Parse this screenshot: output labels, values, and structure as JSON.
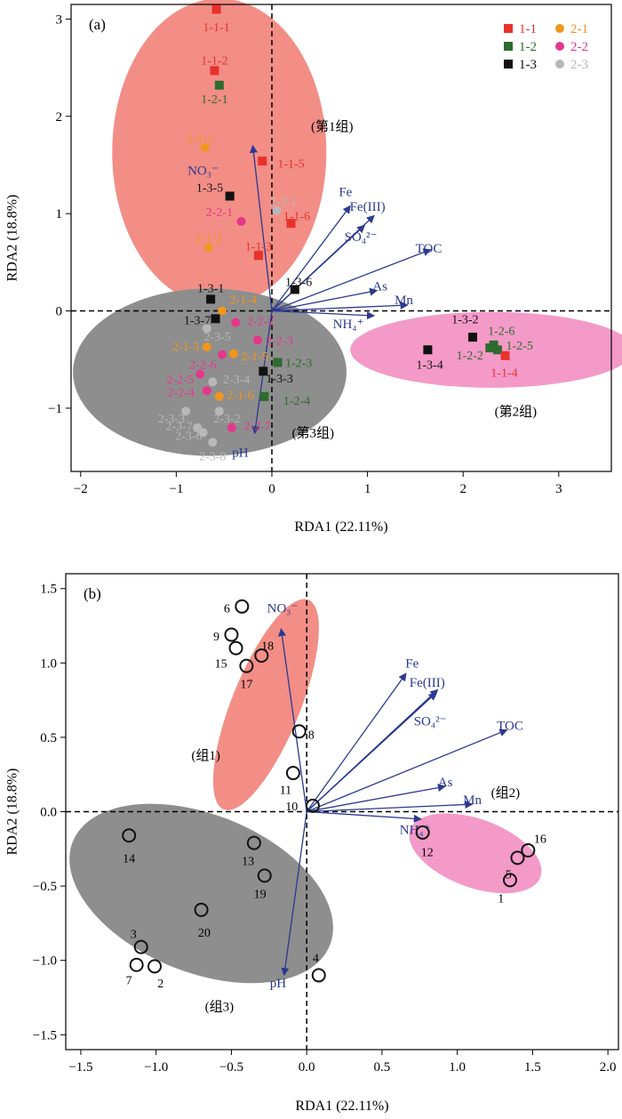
{
  "colors": {
    "1-1": "#e8312d",
    "1-2": "#2e6b2e",
    "1-3": "#111111",
    "2-1": "#f0961e",
    "2-2": "#e5378a",
    "2-3": "#b8b8b8",
    "arrow": "#2b3990",
    "ellipse_red": "#f28e86",
    "ellipse_pink": "#f49ac8",
    "ellipse_gray": "#8e8e8e"
  },
  "chart_data": [
    {
      "type": "scatter",
      "panel_label": "(a)",
      "xlabel": "RDA1 (22.11%)",
      "ylabel": "RDA2 (18.8%)",
      "xlim": [
        -2.1,
        3.55
      ],
      "ylim": [
        -1.65,
        3.15
      ],
      "xticks": [
        -2,
        -1,
        0,
        1,
        2,
        3
      ],
      "yticks": [
        -1,
        0,
        1,
        2,
        3
      ],
      "xtick_labels": [
        "−2",
        "−1",
        "0",
        "1",
        "2",
        "3"
      ],
      "ytick_labels": [
        "−1",
        "0",
        "1",
        "2",
        "3"
      ],
      "legend": {
        "position": "top-right",
        "entries": [
          {
            "label": "1-1",
            "group": "1-1",
            "marker": "square"
          },
          {
            "label": "2-1",
            "group": "2-1",
            "marker": "circle"
          },
          {
            "label": "1-2",
            "group": "1-2",
            "marker": "square"
          },
          {
            "label": "2-2",
            "group": "2-2",
            "marker": "circle"
          },
          {
            "label": "1-3",
            "group": "1-3",
            "marker": "square"
          },
          {
            "label": "2-3",
            "group": "2-3",
            "marker": "circle"
          }
        ]
      },
      "ellipses": [
        {
          "cx": -0.55,
          "cy": 1.63,
          "rx": 1.12,
          "ry": 1.58,
          "color": "ellipse_red",
          "label": "(第1组)",
          "label_x": 0.63,
          "label_y": 1.85
        },
        {
          "cx": 2.3,
          "cy": -0.4,
          "rx": 1.48,
          "ry": 0.39,
          "color": "ellipse_pink",
          "label": "(第2组)",
          "label_x": 2.55,
          "label_y": -1.08
        },
        {
          "cx": -0.65,
          "cy": -0.63,
          "rx": 1.43,
          "ry": 0.86,
          "color": "ellipse_gray",
          "label": "(第3组)",
          "label_x": 0.43,
          "label_y": -1.3
        }
      ],
      "arrows": [
        {
          "label": "NO₃⁻",
          "x": -0.2,
          "y": 1.7,
          "label_x": -0.72,
          "label_y": 1.4
        },
        {
          "label": "Fe",
          "x": 0.82,
          "y": 1.08,
          "label_x": 0.77,
          "label_y": 1.18
        },
        {
          "label": "Fe(III)",
          "x": 1.07,
          "y": 0.98,
          "label_x": 1.0,
          "label_y": 1.03
        },
        {
          "label": "SO₄²⁻",
          "x": 0.97,
          "y": 0.88,
          "label_x": 0.93,
          "label_y": 0.72
        },
        {
          "label": "TOC",
          "x": 1.66,
          "y": 0.63,
          "label_x": 1.64,
          "label_y": 0.6
        },
        {
          "label": "As",
          "x": 1.1,
          "y": 0.21,
          "label_x": 1.13,
          "label_y": 0.21
        },
        {
          "label": "Mn",
          "x": 1.42,
          "y": 0.06,
          "label_x": 1.38,
          "label_y": 0.07
        },
        {
          "label": "NH₄⁺",
          "x": 1.07,
          "y": -0.05,
          "label_x": 0.8,
          "label_y": -0.18
        },
        {
          "label": "pH",
          "x": -0.18,
          "y": -1.26,
          "label_x": -0.33,
          "label_y": -1.5
        }
      ],
      "points": [
        {
          "label": "1-1-1",
          "group": "1-1",
          "x": -0.58,
          "y": 3.1,
          "lx": -0.58,
          "ly": 2.92
        },
        {
          "label": "1-1-2",
          "group": "1-1",
          "x": -0.6,
          "y": 2.47,
          "lx": -0.6,
          "ly": 2.58
        },
        {
          "label": "1-2-1",
          "group": "1-2",
          "x": -0.55,
          "y": 2.32,
          "lx": -0.6,
          "ly": 2.18
        },
        {
          "label": "2-1-1",
          "group": "2-1",
          "x": -0.7,
          "y": 1.68,
          "lx": -0.75,
          "ly": 1.78
        },
        {
          "label": "1-1-5",
          "group": "1-1",
          "x": -0.1,
          "y": 1.54,
          "lx": 0.2,
          "ly": 1.52
        },
        {
          "label": "1-3-5",
          "group": "1-3",
          "x": -0.44,
          "y": 1.18,
          "lx": -0.65,
          "ly": 1.27
        },
        {
          "label": "2-3-1",
          "group": "2-3",
          "x": 0.05,
          "y": 1.03,
          "lx": 0.12,
          "ly": 1.13
        },
        {
          "label": "2-2-1",
          "group": "2-2",
          "x": -0.32,
          "y": 0.92,
          "lx": -0.55,
          "ly": 1.02
        },
        {
          "label": "1-1-6",
          "group": "1-1",
          "x": 0.2,
          "y": 0.9,
          "lx": 0.26,
          "ly": 0.98
        },
        {
          "label": "2-1-2",
          "group": "2-1",
          "x": -0.66,
          "y": 0.65,
          "lx": -0.66,
          "ly": 0.75
        },
        {
          "label": "1-1-3",
          "group": "1-1",
          "x": -0.14,
          "y": 0.57,
          "lx": -0.14,
          "ly": 0.67
        },
        {
          "label": "1-3-6",
          "group": "1-3",
          "x": 0.24,
          "y": 0.22,
          "lx": 0.28,
          "ly": 0.3
        },
        {
          "label": "1-3-1",
          "group": "1-3",
          "x": -0.64,
          "y": 0.12,
          "lx": -0.64,
          "ly": 0.24
        },
        {
          "label": "2-1-4",
          "group": "2-1",
          "x": -0.52,
          "y": 0.0,
          "lx": -0.3,
          "ly": 0.12
        },
        {
          "label": "1-3-7",
          "group": "1-3",
          "x": -0.59,
          "y": -0.08,
          "lx": -0.78,
          "ly": -0.09
        },
        {
          "label": "2-2-2",
          "group": "2-2",
          "x": -0.38,
          "y": -0.12,
          "lx": -0.12,
          "ly": -0.1
        },
        {
          "label": "2-3-5",
          "group": "2-3",
          "x": -0.68,
          "y": -0.18,
          "lx": -0.57,
          "ly": -0.26
        },
        {
          "label": "2-2-3",
          "group": "2-2",
          "x": -0.15,
          "y": -0.3,
          "lx": 0.08,
          "ly": -0.3
        },
        {
          "label": "2-1-3",
          "group": "2-1",
          "x": -0.68,
          "y": -0.37,
          "lx": -0.9,
          "ly": -0.36
        },
        {
          "label": "2-1-5",
          "group": "2-1",
          "x": -0.4,
          "y": -0.44,
          "lx": -0.18,
          "ly": -0.46
        },
        {
          "label": "2-2-6",
          "group": "2-2",
          "x": -0.52,
          "y": -0.45,
          "lx": -0.72,
          "ly": -0.55
        },
        {
          "label": "1-2-3",
          "group": "1-2",
          "x": 0.06,
          "y": -0.53,
          "lx": 0.28,
          "ly": -0.53
        },
        {
          "label": "2-2-5",
          "group": "2-2",
          "x": -0.75,
          "y": -0.65,
          "lx": -0.96,
          "ly": -0.7
        },
        {
          "label": "1-3-3",
          "group": "1-3",
          "x": -0.09,
          "y": -0.62,
          "lx": 0.08,
          "ly": -0.69
        },
        {
          "label": "2-3-4",
          "group": "2-3",
          "x": -0.62,
          "y": -0.73,
          "lx": -0.37,
          "ly": -0.7
        },
        {
          "label": "2-2-4",
          "group": "2-2",
          "x": -0.68,
          "y": -0.82,
          "lx": -0.95,
          "ly": -0.83
        },
        {
          "label": "2-1-6",
          "group": "2-1",
          "x": -0.55,
          "y": -0.88,
          "lx": -0.33,
          "ly": -0.86
        },
        {
          "label": "1-2-4",
          "group": "1-2",
          "x": -0.08,
          "y": -0.88,
          "lx": 0.26,
          "ly": -0.92
        },
        {
          "label": "2-3-2",
          "group": "2-3",
          "x": -0.55,
          "y": -1.03,
          "lx": -0.47,
          "ly": -1.1
        },
        {
          "label": "2-3-3",
          "group": "2-3",
          "x": -0.9,
          "y": -1.03,
          "lx": -1.05,
          "ly": -1.1
        },
        {
          "label": "2-2-7",
          "group": "2-2",
          "x": -0.42,
          "y": -1.2,
          "lx": -0.15,
          "ly": -1.18
        },
        {
          "label": "2-3-6",
          "group": "2-3",
          "x": -0.78,
          "y": -1.2,
          "lx": -0.87,
          "ly": -1.28
        },
        {
          "label": "2-3-7",
          "group": "2-3",
          "x": -0.72,
          "y": -1.25,
          "lx": -0.97,
          "ly": -1.18
        },
        {
          "label": "2-3-8",
          "group": "2-3",
          "x": -0.62,
          "y": -1.35,
          "lx": -0.62,
          "ly": -1.49
        },
        {
          "label": "1-3-2",
          "group": "1-3",
          "x": 2.1,
          "y": -0.27,
          "lx": 2.02,
          "ly": -0.08
        },
        {
          "label": "1-3-4",
          "group": "1-3",
          "x": 1.63,
          "y": -0.4,
          "lx": 1.65,
          "ly": -0.55
        },
        {
          "label": "1-2-2",
          "group": "1-2",
          "x": 2.28,
          "y": -0.38,
          "lx": 2.07,
          "ly": -0.45
        },
        {
          "label": "1-2-6",
          "group": "1-2",
          "x": 2.32,
          "y": -0.35,
          "lx": 2.4,
          "ly": -0.2
        },
        {
          "label": "1-2-5",
          "group": "1-2",
          "x": 2.36,
          "y": -0.4,
          "lx": 2.59,
          "ly": -0.35
        },
        {
          "label": "1-1-4",
          "group": "1-1",
          "x": 2.44,
          "y": -0.46,
          "lx": 2.43,
          "ly": -0.63
        }
      ]
    },
    {
      "type": "scatter",
      "panel_label": "(b)",
      "xlabel": "RDA1 (22.11%)",
      "ylabel": "RDA2 (18.8%)",
      "xlim": [
        -1.6,
        2.07
      ],
      "ylim": [
        -1.6,
        1.6
      ],
      "xticks": [
        -1.5,
        -1.0,
        -0.5,
        0.0,
        0.5,
        1.0,
        1.5,
        2.0
      ],
      "yticks": [
        -1.5,
        -1.0,
        -0.5,
        0.0,
        0.5,
        1.0,
        1.5
      ],
      "xtick_labels": [
        "−1.5",
        "−1.0",
        "−0.5",
        "0.0",
        "0.5",
        "1.0",
        "1.5",
        "2.0"
      ],
      "ytick_labels": [
        "−1.5",
        "−1.0",
        "−0.5",
        "0.0",
        "0.5",
        "1.0",
        "1.5"
      ],
      "ellipses": [
        {
          "cx": -0.27,
          "cy": 0.72,
          "rx": 0.75,
          "ry": 0.23,
          "rotate": -68,
          "color": "ellipse_red",
          "label": "(组1)",
          "label_x": -0.67,
          "label_y": 0.35
        },
        {
          "cx": 1.12,
          "cy": -0.28,
          "rx": 0.46,
          "ry": 0.23,
          "rotate": 20,
          "color": "ellipse_pink",
          "label": "(组2)",
          "label_x": 1.32,
          "label_y": 0.1
        },
        {
          "cx": -0.7,
          "cy": -0.55,
          "rx": 0.92,
          "ry": 0.53,
          "rotate": 22,
          "color": "ellipse_gray",
          "label": "(组3)",
          "label_x": -0.58,
          "label_y": -1.34
        }
      ],
      "arrows": [
        {
          "label": "NO₃⁻",
          "x": -0.17,
          "y": 1.23,
          "label_x": -0.16,
          "label_y": 1.34
        },
        {
          "label": "Fe",
          "x": 0.66,
          "y": 0.93,
          "label_x": 0.7,
          "label_y": 0.97
        },
        {
          "label": "Fe(III)",
          "x": 0.87,
          "y": 0.82,
          "label_x": 0.8,
          "label_y": 0.84
        },
        {
          "label": "SO₄²⁻",
          "x": 0.86,
          "y": 0.8,
          "label_x": 0.82,
          "label_y": 0.58
        },
        {
          "label": "TOC",
          "x": 1.33,
          "y": 0.55,
          "label_x": 1.35,
          "label_y": 0.55
        },
        {
          "label": "As",
          "x": 0.92,
          "y": 0.17,
          "label_x": 0.92,
          "label_y": 0.17
        },
        {
          "label": "Mn",
          "x": 1.1,
          "y": 0.05,
          "label_x": 1.1,
          "label_y": 0.05
        },
        {
          "label": "NH₄⁺",
          "x": 0.76,
          "y": -0.05,
          "label_x": 0.72,
          "label_y": -0.15
        },
        {
          "label": "pH",
          "x": -0.15,
          "y": -1.1,
          "label_x": -0.19,
          "label_y": -1.18
        }
      ],
      "points": [
        {
          "label": "6",
          "x": -0.43,
          "y": 1.38,
          "lx": -0.53,
          "ly": 1.37
        },
        {
          "label": "9",
          "x": -0.5,
          "y": 1.19,
          "lx": -0.6,
          "ly": 1.18
        },
        {
          "label": "18",
          "x": -0.3,
          "y": 1.05,
          "lx": -0.26,
          "ly": 1.12
        },
        {
          "label": "15",
          "x": -0.47,
          "y": 1.1,
          "lx": -0.57,
          "ly": 1.0
        },
        {
          "label": "17",
          "x": -0.4,
          "y": 0.98,
          "lx": -0.4,
          "ly": 0.86
        },
        {
          "label": "8",
          "x": -0.05,
          "y": 0.54,
          "lx": 0.03,
          "ly": 0.52
        },
        {
          "label": "11",
          "x": -0.09,
          "y": 0.26,
          "lx": -0.14,
          "ly": 0.15
        },
        {
          "label": "10",
          "x": 0.04,
          "y": 0.04,
          "lx": -0.1,
          "ly": 0.04
        },
        {
          "label": "12",
          "x": 0.77,
          "y": -0.14,
          "lx": 0.8,
          "ly": -0.27
        },
        {
          "label": "16",
          "x": 1.47,
          "y": -0.26,
          "lx": 1.55,
          "ly": -0.18
        },
        {
          "label": "5",
          "x": 1.4,
          "y": -0.31,
          "lx": 1.34,
          "ly": -0.42
        },
        {
          "label": "1",
          "x": 1.35,
          "y": -0.46,
          "lx": 1.29,
          "ly": -0.58
        },
        {
          "label": "14",
          "x": -1.18,
          "y": -0.16,
          "lx": -1.18,
          "ly": -0.31
        },
        {
          "label": "13",
          "x": -0.35,
          "y": -0.21,
          "lx": -0.39,
          "ly": -0.33
        },
        {
          "label": "19",
          "x": -0.28,
          "y": -0.43,
          "lx": -0.31,
          "ly": -0.55
        },
        {
          "label": "20",
          "x": -0.7,
          "y": -0.66,
          "lx": -0.68,
          "ly": -0.81
        },
        {
          "label": "3",
          "x": -1.1,
          "y": -0.91,
          "lx": -1.15,
          "ly": -0.82
        },
        {
          "label": "7",
          "x": -1.13,
          "y": -1.03,
          "lx": -1.18,
          "ly": -1.13
        },
        {
          "label": "2",
          "x": -1.01,
          "y": -1.04,
          "lx": -0.97,
          "ly": -1.15
        },
        {
          "label": "4",
          "x": 0.08,
          "y": -1.1,
          "lx": 0.06,
          "ly": -0.98
        }
      ]
    }
  ]
}
